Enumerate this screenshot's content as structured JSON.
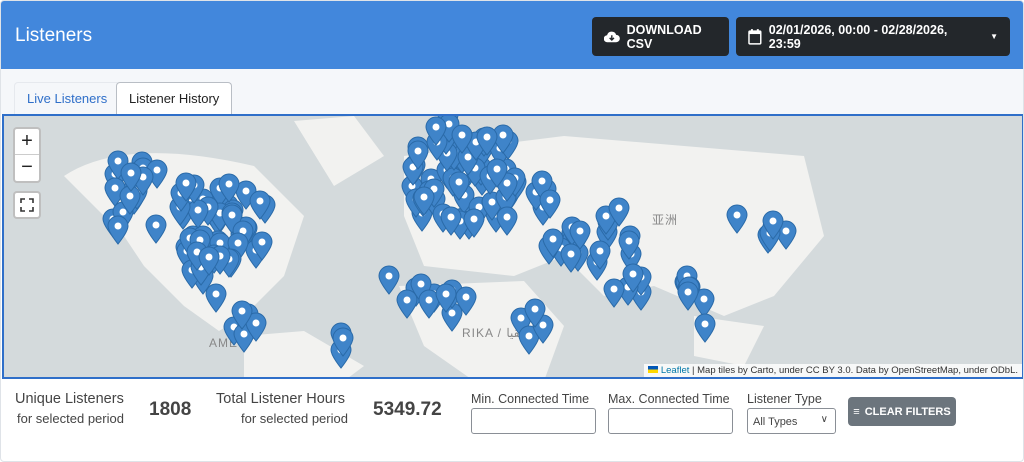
{
  "header": {
    "title": "Listeners",
    "download_label": "DOWNLOAD CSV",
    "date_range": "02/01/2026, 00:00 - 02/28/2026, 23:59",
    "accent": "#4287dc"
  },
  "tabs": [
    {
      "label": "Live Listeners",
      "active": false
    },
    {
      "label": "Listener History",
      "active": true
    }
  ],
  "map": {
    "zoom_in": "+",
    "zoom_out": "−",
    "labels": {
      "asia": "亚洲",
      "america": "AME",
      "africa": "RIKA / أفريقيا"
    },
    "attribution": {
      "leaflet": "Leaflet",
      "text": "| Map tiles by Carto, under CC BY 3.0. Data by OpenStreetMap, under ODbL."
    },
    "marker_color": "#3f84c9"
  },
  "stats": {
    "unique_label": "Unique Listeners",
    "unique_sub": "for selected period",
    "unique_value": "1808",
    "hours_label": "Total Listener Hours",
    "hours_sub": "for selected period",
    "hours_value": "5349.72"
  },
  "filters": {
    "min_label": "Min. Connected Time",
    "min_value": "",
    "max_label": "Max. Connected Time",
    "max_value": "",
    "type_label": "Listener Type",
    "type_value": "All Types",
    "clear_label": "CLEAR FILTERS"
  }
}
